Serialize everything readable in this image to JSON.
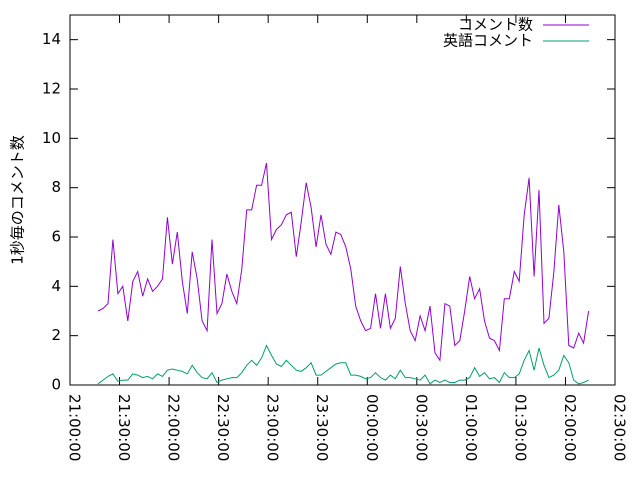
{
  "chart_data": {
    "type": "line",
    "ylabel": "1秒毎のコメント数",
    "x": [
      "21:17:00",
      "21:20:00",
      "21:23:00",
      "21:26:00",
      "21:29:00",
      "21:32:00",
      "21:35:00",
      "21:38:00",
      "21:41:00",
      "21:44:00",
      "21:47:00",
      "21:50:00",
      "21:53:00",
      "21:56:00",
      "21:59:00",
      "22:02:00",
      "22:05:00",
      "22:08:00",
      "22:11:00",
      "22:14:00",
      "22:17:00",
      "22:20:00",
      "22:23:00",
      "22:26:00",
      "22:29:00",
      "22:32:00",
      "22:35:00",
      "22:38:00",
      "22:41:00",
      "22:44:00",
      "22:47:00",
      "22:50:00",
      "22:53:00",
      "22:56:00",
      "22:59:00",
      "23:02:00",
      "23:05:00",
      "23:08:00",
      "23:11:00",
      "23:14:00",
      "23:17:00",
      "23:20:00",
      "23:23:00",
      "23:26:00",
      "23:29:00",
      "23:32:00",
      "23:35:00",
      "23:38:00",
      "23:41:00",
      "23:44:00",
      "23:47:00",
      "23:50:00",
      "23:53:00",
      "23:56:00",
      "23:59:00",
      "00:02:00",
      "00:05:00",
      "00:08:00",
      "00:11:00",
      "00:14:00",
      "00:17:00",
      "00:20:00",
      "00:23:00",
      "00:26:00",
      "00:29:00",
      "00:32:00",
      "00:35:00",
      "00:38:00",
      "00:41:00",
      "00:44:00",
      "00:47:00",
      "00:50:00",
      "00:53:00",
      "00:56:00",
      "00:59:00",
      "01:02:00",
      "01:05:00",
      "01:08:00",
      "01:11:00",
      "01:14:00",
      "01:17:00",
      "01:20:00",
      "01:23:00",
      "01:26:00",
      "01:29:00",
      "01:32:00",
      "01:35:00",
      "01:38:00",
      "01:41:00",
      "01:44:00",
      "01:47:00",
      "01:50:00",
      "01:53:00",
      "01:56:00",
      "01:59:00",
      "02:02:00",
      "02:05:00",
      "02:08:00",
      "02:11:00",
      "02:14:00"
    ],
    "series": [
      {
        "name": "コメント数",
        "color": "#9400d3",
        "values": [
          3.0,
          3.1,
          3.3,
          5.9,
          3.7,
          4.0,
          2.6,
          4.2,
          4.6,
          3.6,
          4.3,
          3.8,
          4.0,
          4.3,
          6.8,
          4.9,
          6.2,
          4.2,
          2.9,
          5.4,
          4.3,
          2.6,
          2.2,
          5.9,
          2.9,
          3.3,
          4.5,
          3.8,
          3.3,
          4.7,
          7.1,
          7.1,
          8.1,
          8.1,
          9.0,
          5.9,
          6.3,
          6.5,
          6.9,
          7.0,
          5.2,
          6.6,
          8.2,
          7.2,
          5.6,
          6.9,
          5.7,
          5.3,
          6.2,
          6.1,
          5.6,
          4.7,
          3.2,
          2.6,
          2.2,
          2.3,
          3.7,
          2.3,
          3.7,
          2.3,
          2.7,
          4.8,
          3.3,
          2.2,
          1.8,
          2.8,
          2.2,
          3.2,
          1.3,
          1.0,
          3.3,
          3.2,
          1.6,
          1.8,
          3.0,
          4.4,
          3.5,
          3.9,
          2.6,
          1.9,
          1.8,
          1.4,
          3.5,
          3.5,
          4.6,
          4.2,
          6.9,
          8.4,
          4.4,
          7.9,
          2.5,
          2.7,
          4.6,
          7.3,
          5.4,
          1.6,
          1.5,
          2.1,
          1.7,
          3.0
        ]
      },
      {
        "name": "英語コメント",
        "color": "#009e73",
        "values": [
          0.05,
          0.2,
          0.35,
          0.45,
          0.15,
          0.2,
          0.2,
          0.45,
          0.4,
          0.3,
          0.35,
          0.25,
          0.45,
          0.35,
          0.6,
          0.65,
          0.6,
          0.55,
          0.45,
          0.8,
          0.5,
          0.3,
          0.25,
          0.5,
          0.1,
          0.2,
          0.25,
          0.3,
          0.3,
          0.5,
          0.8,
          1.0,
          0.8,
          1.1,
          1.6,
          1.2,
          0.85,
          0.75,
          1.0,
          0.8,
          0.6,
          0.55,
          0.7,
          0.9,
          0.4,
          0.4,
          0.55,
          0.7,
          0.85,
          0.9,
          0.9,
          0.4,
          0.4,
          0.35,
          0.25,
          0.3,
          0.5,
          0.3,
          0.2,
          0.4,
          0.25,
          0.6,
          0.3,
          0.3,
          0.25,
          0.2,
          0.4,
          0.05,
          0.2,
          0.1,
          0.2,
          0.1,
          0.1,
          0.2,
          0.2,
          0.3,
          0.7,
          0.35,
          0.5,
          0.25,
          0.3,
          0.1,
          0.5,
          0.3,
          0.3,
          0.45,
          1.0,
          1.4,
          0.6,
          1.5,
          0.8,
          0.3,
          0.4,
          0.6,
          1.2,
          0.9,
          0.2,
          0.05,
          0.1,
          0.2
        ]
      }
    ],
    "xlim": [
      "21:00:00",
      "02:30:00"
    ],
    "xticks": [
      "21:00:00",
      "21:30:00",
      "22:00:00",
      "22:30:00",
      "23:00:00",
      "23:30:00",
      "00:00:00",
      "00:30:00",
      "01:00:00",
      "01:30:00",
      "02:00:00",
      "02:30:00"
    ],
    "ylim": [
      0,
      15
    ],
    "yticks": [
      0,
      2,
      4,
      6,
      8,
      10,
      12,
      14
    ],
    "legend": "top-right"
  }
}
